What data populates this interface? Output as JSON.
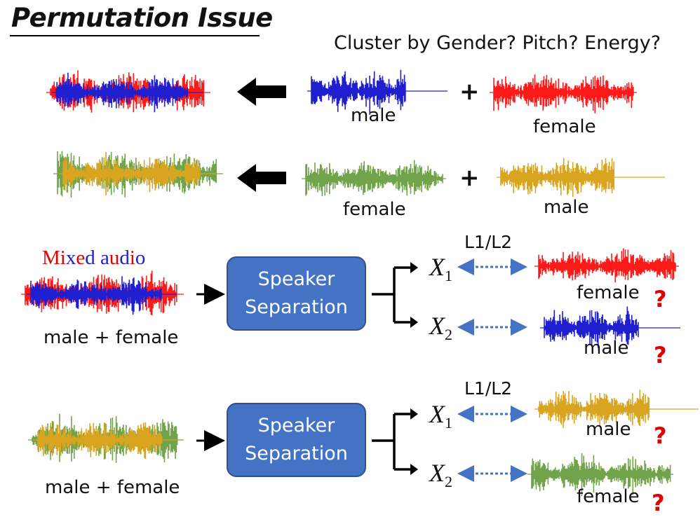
{
  "title": "Permutation Issue",
  "question": "Cluster by Gender? Pitch? Energy?",
  "rows": [
    {
      "source_a": "male",
      "plus": "+",
      "source_b": "female"
    },
    {
      "source_a": "female",
      "plus": "+",
      "source_b": "male"
    }
  ],
  "mixed_audio_chars": [
    "M",
    "i",
    "x",
    "e",
    "d",
    " ",
    "a",
    "u",
    "d",
    "i",
    "o"
  ],
  "mixed_audio_colors": [
    "#e00000",
    "#e00000",
    "#1f1fd0",
    "#e00000",
    "#1f1fd0",
    "#ffffff",
    "#1f1fd0",
    "#e00000",
    "#1f1fd0",
    "#e00000",
    "#1f1fd0"
  ],
  "separations": [
    {
      "input_label": "male + female",
      "box_line1": "Speaker",
      "box_line2": "Separation",
      "loss": "L1/L2",
      "out1": {
        "var": "X",
        "sub": "1",
        "label": "female",
        "mark": "?"
      },
      "out2": {
        "var": "X",
        "sub": "2",
        "label": "male",
        "mark": "?"
      }
    },
    {
      "input_label": "male + female",
      "box_line1": "Speaker",
      "box_line2": "Separation",
      "loss": "L1/L2",
      "out1": {
        "var": "X",
        "sub": "1",
        "label": "male",
        "mark": "?"
      },
      "out2": {
        "var": "X",
        "sub": "2",
        "label": "female",
        "mark": "?"
      }
    }
  ],
  "colors": {
    "male_blue": "#1f1fd0",
    "female_red": "#ff1a1a",
    "female_green": "#70a34a",
    "male_gold": "#d9a520",
    "box_blue": "#4472C4",
    "arrow_dotted": "#4472C4",
    "question_red": "#e00000"
  }
}
